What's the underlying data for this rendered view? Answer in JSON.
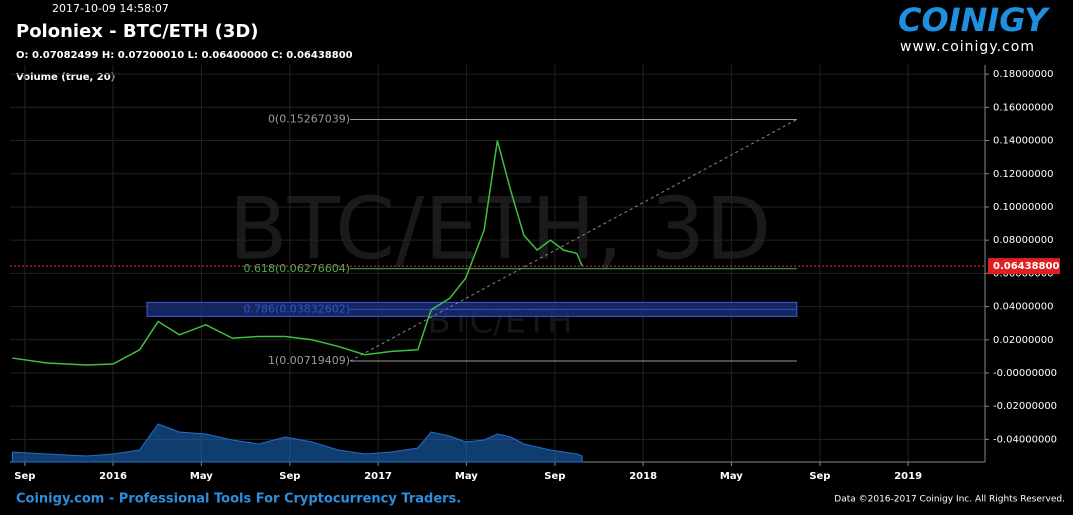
{
  "chart_data": {
    "type": "line",
    "timestamp": "2017-10-09 14:58:07",
    "title": "Poloniex - BTC/ETH (3D)",
    "subtitle": "O: 0.07082499 H: 0.07200010 L: 0.06400000 C: 0.06438800",
    "volume_label": "Volume (true, 20)",
    "watermark": "BTC/ETH, 3D",
    "watermark_small": "BTC/ETH",
    "brand": "COINIGY",
    "url": "www.coinigy.com",
    "footer": "Coinigy.com - Professional Tools For Cryptocurrency Traders.",
    "copyright": "Data ©2016-2017 Coinigy Inc. All Rights Reserved.",
    "x": [
      2015.62,
      2015.75,
      2015.9,
      2016.0,
      2016.1,
      2016.17,
      2016.25,
      2016.35,
      2016.45,
      2016.55,
      2016.65,
      2016.75,
      2016.85,
      2016.95,
      2017.05,
      2017.15,
      2017.2,
      2017.27,
      2017.33,
      2017.4,
      2017.45,
      2017.5,
      2017.55,
      2017.6,
      2017.65,
      2017.7,
      2017.75,
      2017.77
    ],
    "series": [
      {
        "name": "BTC/ETH",
        "color": "#3fbf3f",
        "values": [
          0.009,
          0.006,
          0.0048,
          0.0054,
          0.014,
          0.031,
          0.023,
          0.029,
          0.021,
          0.022,
          0.022,
          0.02,
          0.016,
          0.011,
          0.013,
          0.014,
          0.038,
          0.045,
          0.057,
          0.086,
          0.14,
          0.11,
          0.083,
          0.074,
          0.08,
          0.074,
          0.072,
          0.064388
        ]
      },
      {
        "name": "Volume",
        "color": "#1f6fc8",
        "axis": "y2",
        "values": [
          10,
          8,
          6,
          8,
          12,
          38,
          30,
          28,
          22,
          18,
          25,
          20,
          12,
          8,
          10,
          14,
          30,
          26,
          20,
          22,
          28,
          25,
          18,
          15,
          12,
          10,
          8,
          6
        ]
      }
    ],
    "xlim": [
      2015.611,
      2019.29
    ],
    "xticks": [
      {
        "value": 2015.667,
        "label": "Sep"
      },
      {
        "value": 2016,
        "label": "2016"
      },
      {
        "value": 2016.333,
        "label": "May"
      },
      {
        "value": 2016.667,
        "label": "Sep"
      },
      {
        "value": 2017,
        "label": "2017"
      },
      {
        "value": 2017.333,
        "label": "May"
      },
      {
        "value": 2017.667,
        "label": "Sep"
      },
      {
        "value": 2018,
        "label": "2018"
      },
      {
        "value": 2018.333,
        "label": "May"
      },
      {
        "value": 2018.667,
        "label": "Sep"
      },
      {
        "value": 2019,
        "label": "2019"
      }
    ],
    "ylim": [
      -0.0536,
      0.1855
    ],
    "yticks": [
      {
        "value": 0.18,
        "label": "0.18000000"
      },
      {
        "value": 0.16,
        "label": "0.16000000"
      },
      {
        "value": 0.14,
        "label": "0.14000000"
      },
      {
        "value": 0.12,
        "label": "0.12000000"
      },
      {
        "value": 0.1,
        "label": "0.10000000"
      },
      {
        "value": 0.08,
        "label": "0.08000000"
      },
      {
        "value": 0.06,
        "label": "0.06000000"
      },
      {
        "value": 0.04,
        "label": "0.04000000"
      },
      {
        "value": 0.02,
        "label": "0.02000000"
      },
      {
        "value": 0,
        "label": "-0.00000000"
      },
      {
        "value": -0.02,
        "label": "-0.02000000"
      },
      {
        "value": -0.04,
        "label": "-0.04000000"
      }
    ],
    "y2lim": [
      0,
      100
    ],
    "grid": true,
    "last_price": {
      "value": 0.064388,
      "label": "0.06438800"
    },
    "fib": {
      "xlim": [
        2016.894,
        2018.58
      ],
      "box_x0": 2016.128,
      "levels": [
        {
          "label": "0(0.15267039)",
          "value": 0.15267039,
          "color": "#9a9a9a"
        },
        {
          "label": "0.618(0.06276604)",
          "value": 0.06276604,
          "color": "#4caf50"
        },
        {
          "label": "0.786(0.03832602)",
          "value": 0.03832602,
          "color": "#2a56c6"
        },
        {
          "label": "1(0.00719409)",
          "value": 0.00719409,
          "color": "#9a9a9a"
        }
      ]
    }
  }
}
